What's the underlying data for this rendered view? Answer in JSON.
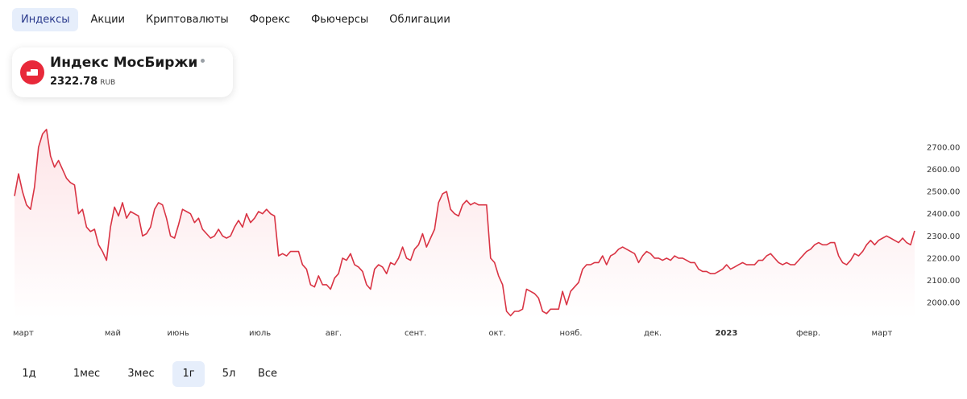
{
  "tabs": [
    {
      "label": "Индексы",
      "active": true
    },
    {
      "label": "Акции",
      "active": false
    },
    {
      "label": "Криптовалюты",
      "active": false
    },
    {
      "label": "Форекс",
      "active": false
    },
    {
      "label": "Фьючерсы",
      "active": false
    },
    {
      "label": "Облигации",
      "active": false
    }
  ],
  "instrument": {
    "icon": "moex-logo-icon",
    "name": "Индекс МосБиржи",
    "value": "2322.78",
    "currency": "RUB"
  },
  "colors": {
    "line": "#d93444",
    "fill": "#fde4e7",
    "accent_tab": "#e6eefb",
    "logo": "#e8293a"
  },
  "periods": [
    {
      "label": "1д",
      "active": false
    },
    {
      "label": "1мес",
      "active": false
    },
    {
      "label": "3мес",
      "active": false
    },
    {
      "label": "1г",
      "active": true
    },
    {
      "label": "5л",
      "active": false
    },
    {
      "label": "Все",
      "active": false
    }
  ],
  "chart_data": {
    "type": "area",
    "y_tick_labels": [
      "2700.00",
      "2600.00",
      "2500.00",
      "2400.00",
      "2300.00",
      "2200.00",
      "2100.00",
      "2000.00"
    ],
    "y_ticks": [
      2700,
      2600,
      2500,
      2400,
      2300,
      2200,
      2100,
      2000
    ],
    "ylim": [
      1920,
      2790
    ],
    "x_tick_labels": [
      "март",
      "май",
      "июнь",
      "июль",
      "авг.",
      "сент.",
      "окт.",
      "нояб.",
      "дек.",
      "2023",
      "февр.",
      "март"
    ],
    "x_tick_positions": [
      0,
      12,
      20,
      30,
      39,
      49,
      59,
      68,
      78,
      87,
      97,
      106
    ],
    "x_range": [
      0,
      110
    ],
    "grid": false,
    "series": [
      {
        "values": [
          2480,
          2580,
          2500,
          2440,
          2420,
          2520,
          2700,
          2760,
          2780,
          2660,
          2610,
          2640,
          2600,
          2560,
          2540,
          2530,
          2400,
          2420,
          2340,
          2320,
          2330,
          2260,
          2230,
          2190,
          2340,
          2430,
          2390,
          2450,
          2380,
          2410,
          2400,
          2390,
          2300,
          2310,
          2340,
          2420,
          2450,
          2440,
          2380,
          2300,
          2290,
          2350,
          2420,
          2410,
          2400,
          2360,
          2380,
          2330,
          2310,
          2290,
          2300,
          2330,
          2300,
          2290,
          2300,
          2340,
          2370,
          2340,
          2400,
          2360,
          2380,
          2410,
          2400,
          2420,
          2400,
          2390,
          2210,
          2220,
          2210,
          2230,
          2230,
          2230,
          2170,
          2150,
          2080,
          2070,
          2120,
          2080,
          2080,
          2060,
          2110,
          2130,
          2200,
          2190,
          2220,
          2170,
          2160,
          2140,
          2080,
          2060,
          2150,
          2170,
          2160,
          2130,
          2180,
          2170,
          2200,
          2250,
          2200,
          2190,
          2240,
          2260,
          2310,
          2250,
          2290,
          2330,
          2450,
          2490,
          2500,
          2420,
          2400,
          2390,
          2440,
          2460,
          2440,
          2450,
          2440,
          2440,
          2440,
          2200,
          2180,
          2120,
          2080,
          1960,
          1940,
          1960,
          1960,
          1970,
          2060,
          2050,
          2040,
          2020,
          1960,
          1950,
          1970,
          1970,
          1970,
          2050,
          1990,
          2050,
          2070,
          2090,
          2150,
          2170,
          2170,
          2180,
          2180,
          2210,
          2170,
          2210,
          2220,
          2240,
          2250,
          2240,
          2230,
          2220,
          2180,
          2210,
          2230,
          2220,
          2200,
          2200,
          2190,
          2200,
          2190,
          2210,
          2200,
          2200,
          2190,
          2180,
          2180,
          2150,
          2140,
          2140,
          2130,
          2130,
          2140,
          2150,
          2170,
          2150,
          2160,
          2170,
          2180,
          2170,
          2170,
          2170,
          2190,
          2190,
          2210,
          2220,
          2200,
          2180,
          2170,
          2180,
          2170,
          2170,
          2190,
          2210,
          2230,
          2240,
          2260,
          2270,
          2260,
          2260,
          2270,
          2270,
          2210,
          2180,
          2170,
          2190,
          2220,
          2210,
          2230,
          2260,
          2280,
          2260,
          2280,
          2290,
          2300,
          2290,
          2280,
          2270,
          2290,
          2270,
          2260,
          2322.78
        ]
      }
    ]
  }
}
